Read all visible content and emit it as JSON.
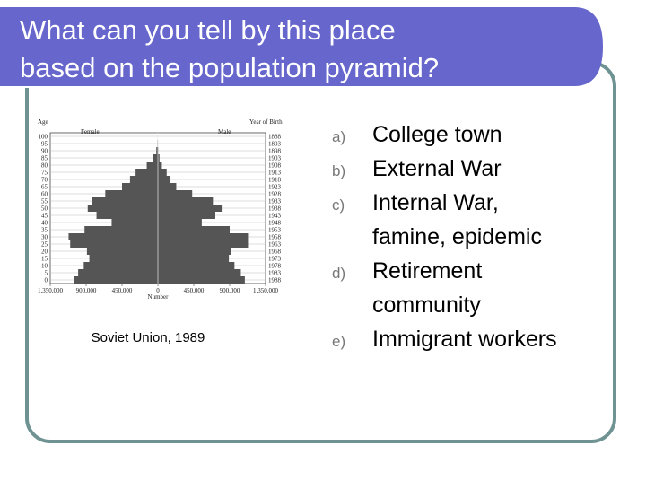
{
  "title": [
    "What can you tell by this place",
    "based on the population pyramid?"
  ],
  "figure": {
    "type": "pyramid",
    "age_label": "Age",
    "year_label": "Year of Birth",
    "left_label": "Female",
    "right_label": "Male",
    "x_label": "Number",
    "age_ticks": [
      100,
      95,
      90,
      85,
      80,
      75,
      70,
      65,
      60,
      55,
      50,
      45,
      40,
      35,
      30,
      25,
      20,
      15,
      10,
      5,
      0
    ],
    "year_ticks": [
      1888,
      1893,
      1898,
      1903,
      1908,
      1913,
      1918,
      1923,
      1928,
      1933,
      1938,
      1943,
      1948,
      1953,
      1958,
      1963,
      1968,
      1973,
      1978,
      1983,
      1988
    ],
    "xlim": [
      -1350000,
      1350000
    ],
    "xticks": [
      {
        "value": -1350000,
        "label": "1,350,000"
      },
      {
        "value": -900000,
        "label": "900,000"
      },
      {
        "value": -450000,
        "label": "450,000"
      },
      0,
      {
        "value": 450000,
        "label": "450,000"
      },
      {
        "value": 900000,
        "label": "900,000"
      },
      {
        "value": 1350000,
        "label": "1,350,000"
      }
    ],
    "female": [
      1050000,
      1000000,
      930000,
      860000,
      890000,
      1100000,
      1120000,
      920000,
      580000,
      770000,
      880000,
      830000,
      660000,
      450000,
      350000,
      280000,
      140000,
      60000,
      20000,
      6000,
      2000
    ],
    "male": [
      1090000,
      1040000,
      960000,
      890000,
      920000,
      1130000,
      1130000,
      900000,
      550000,
      720000,
      800000,
      690000,
      430000,
      230000,
      150000,
      110000,
      50000,
      20000,
      6000,
      2000,
      500
    ],
    "color": "#555555",
    "caption": "Soviet Union, 1989"
  },
  "options": [
    {
      "letter": "a)",
      "lines": [
        "College town"
      ]
    },
    {
      "letter": "b)",
      "lines": [
        "External War"
      ]
    },
    {
      "letter": "c)",
      "lines": [
        "Internal War,",
        "famine, epidemic"
      ]
    },
    {
      "letter": "d)",
      "lines": [
        "Retirement",
        "community"
      ]
    },
    {
      "letter": "e)",
      "lines": [
        "Immigrant workers"
      ]
    }
  ]
}
